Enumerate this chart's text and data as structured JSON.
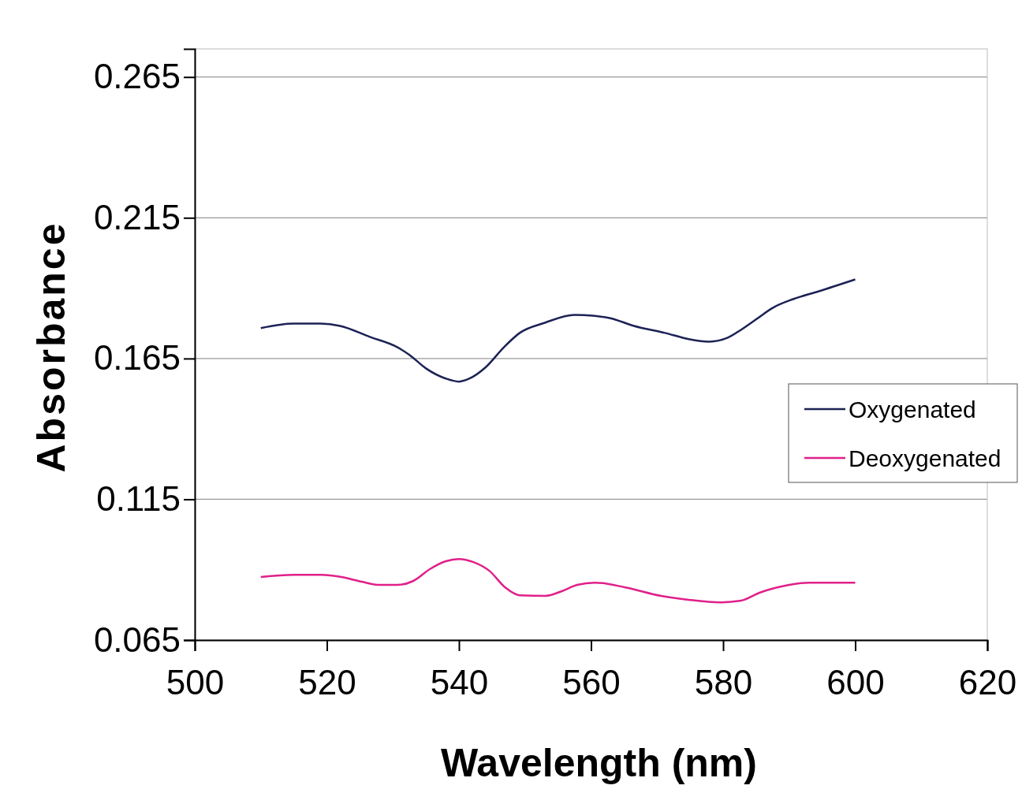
{
  "chart_data": {
    "type": "line",
    "xlabel": "Wavelength (nm)",
    "ylabel": "Absorbance",
    "xlim": [
      500,
      620
    ],
    "xticks": [
      500,
      520,
      540,
      560,
      580,
      600,
      620
    ],
    "ylim": [
      0.065,
      0.275
    ],
    "yticks": [
      0.065,
      0.115,
      0.165,
      0.215,
      0.265
    ],
    "grid": "y",
    "legend": "right",
    "line_style": "solid",
    "marker": "none",
    "series": [
      {
        "name": "Oxygenated",
        "color": "#1c2255",
        "x": [
          510,
          515,
          519,
          522,
          526.5,
          530.7,
          532.5,
          535,
          538,
          540,
          541.6,
          544,
          546.8,
          549.2,
          553,
          557.5,
          560.3,
          562.8,
          566.5,
          571.2,
          574.8,
          577.9,
          580.7,
          582.7,
          585.1,
          587.5,
          590.6,
          594.5,
          600
        ],
        "values": [
          0.1758,
          0.1774,
          0.1774,
          0.1766,
          0.1727,
          0.169,
          0.1663,
          0.1615,
          0.1579,
          0.1568,
          0.1579,
          0.1618,
          0.169,
          0.1741,
          0.1777,
          0.1805,
          0.1802,
          0.1794,
          0.1766,
          0.1741,
          0.1719,
          0.171,
          0.1724,
          0.1752,
          0.1791,
          0.183,
          0.1861,
          0.1889,
          0.1931
        ]
      },
      {
        "name": "Deoxygenated",
        "color": "#e0208a",
        "x": [
          510,
          515,
          519.2,
          522.2,
          525.3,
          527.7,
          530.7,
          533.1,
          535.6,
          538,
          540,
          542.2,
          544.6,
          547,
          549.2,
          553.1,
          555.5,
          557.9,
          560.6,
          565.2,
          570.6,
          574.8,
          579.7,
          582.7,
          585.5,
          590,
          593,
          600
        ],
        "values": [
          0.0874,
          0.0882,
          0.0882,
          0.0874,
          0.0857,
          0.0846,
          0.0846,
          0.086,
          0.0902,
          0.093,
          0.0938,
          0.0927,
          0.0896,
          0.0837,
          0.0809,
          0.0807,
          0.0823,
          0.0846,
          0.0854,
          0.0837,
          0.0807,
          0.0793,
          0.0784,
          0.079,
          0.0818,
          0.0846,
          0.0854,
          0.0854
        ]
      }
    ]
  }
}
